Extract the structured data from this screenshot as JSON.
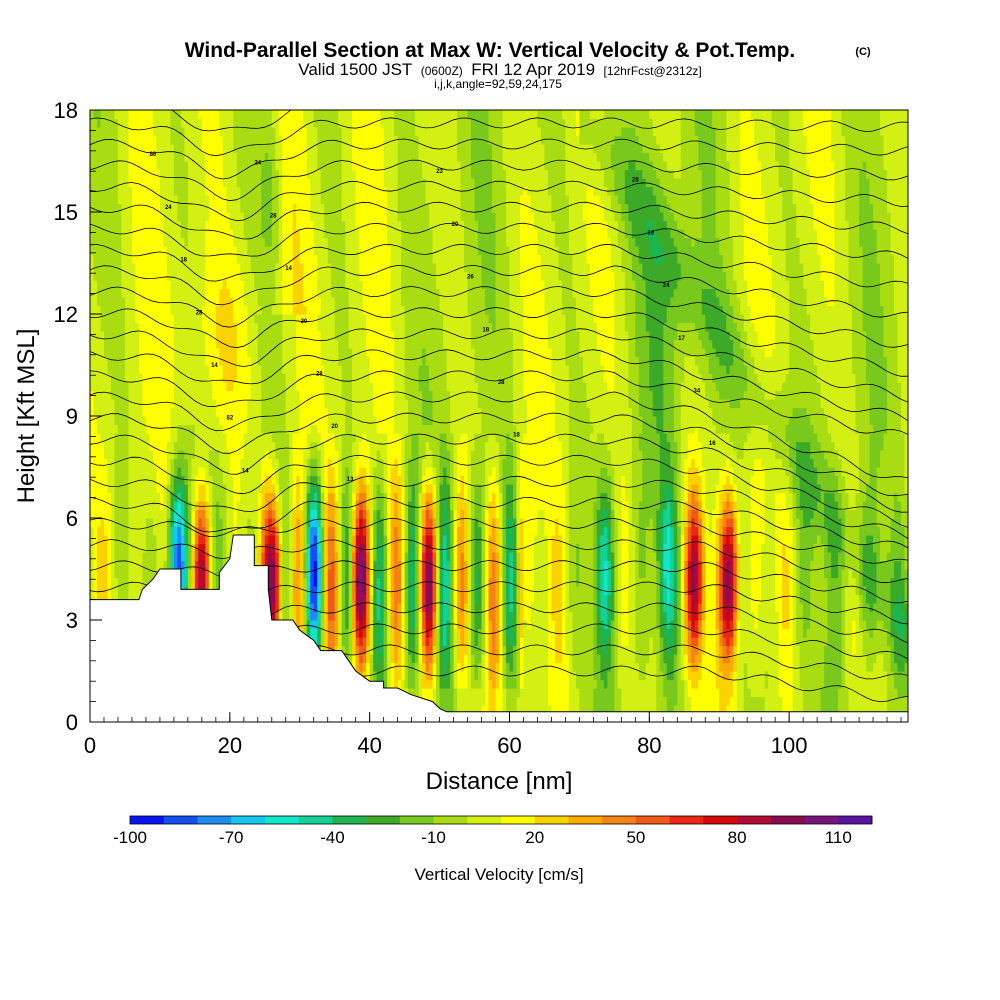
{
  "title": {
    "main": "Wind-Parallel Section at Max W: Vertical Velocity & Pot.Temp.",
    "mark": "(C)",
    "valid_prefix": "Valid 1500 JST",
    "valid_utc": "(0600Z)",
    "valid_date": "FRI 12 Apr 2019",
    "forecast": "[12hrFcst@2312z]",
    "indices": "i,j,k,angle=92,59,24,175"
  },
  "chart_data": {
    "type": "heatmap",
    "xlabel": "Distance [nm]",
    "ylabel": "Height [Kft MSL]",
    "xlim": [
      0,
      117
    ],
    "ylim": [
      0,
      18
    ],
    "x_ticks": [
      0,
      20,
      40,
      60,
      80,
      100
    ],
    "y_ticks": [
      0,
      3,
      6,
      9,
      12,
      15,
      18
    ],
    "colorbar": {
      "label": "Vertical Velocity [cm/s]",
      "min": -100,
      "step": 10,
      "tick_labels": [
        "-100",
        "-70",
        "-40",
        "-10",
        "20",
        "50",
        "80",
        "110"
      ],
      "colors": [
        "#0a14f0",
        "#1450f0",
        "#1e8cf0",
        "#14c8f0",
        "#14e6c8",
        "#14d296",
        "#1eb450",
        "#3caa28",
        "#78c81e",
        "#aadc14",
        "#d2f014",
        "#ffff00",
        "#fad200",
        "#faaa00",
        "#f58214",
        "#f05a14",
        "#eb2814",
        "#d20a0a",
        "#b40a32",
        "#8c0a50",
        "#78147d",
        "#5a14a0"
      ]
    },
    "terrain_kft": [
      [
        0,
        3.6
      ],
      [
        7,
        3.6
      ],
      [
        7.5,
        3.9
      ],
      [
        9,
        4.2
      ],
      [
        10,
        4.5
      ],
      [
        13,
        4.5
      ],
      [
        13,
        3.9
      ],
      [
        18.5,
        3.9
      ],
      [
        18.5,
        4.4
      ],
      [
        20,
        4.8
      ],
      [
        20.5,
        5.5
      ],
      [
        23.5,
        5.5
      ],
      [
        23.5,
        4.6
      ],
      [
        25.5,
        4.6
      ],
      [
        25.5,
        3.9
      ],
      [
        26,
        3.0
      ],
      [
        29,
        3.0
      ],
      [
        30,
        2.7
      ],
      [
        32,
        2.4
      ],
      [
        33,
        2.1
      ],
      [
        36,
        2.1
      ],
      [
        37,
        1.8
      ],
      [
        38,
        1.5
      ],
      [
        40,
        1.2
      ],
      [
        42,
        1.2
      ],
      [
        42,
        1.0
      ],
      [
        44,
        1.0
      ],
      [
        45,
        0.9
      ],
      [
        46,
        0.8
      ],
      [
        49,
        0.6
      ],
      [
        50,
        0.4
      ],
      [
        51,
        0.3
      ],
      [
        117,
        0.3
      ]
    ],
    "updraft_cores": [
      {
        "x": 16.0,
        "w": 90
      },
      {
        "x": 26.5,
        "w": 95
      },
      {
        "x": 38.5,
        "w": 80
      },
      {
        "x": 48.5,
        "w": 70
      },
      {
        "x": 86.5,
        "w": 80
      },
      {
        "x": 91.5,
        "w": 95
      }
    ],
    "downdraft_cores": [
      {
        "x": 12.5,
        "w": -90
      },
      {
        "x": 32.0,
        "w": -70
      },
      {
        "x": 73.5,
        "w": -40
      },
      {
        "x": 82.5,
        "w": -40
      }
    ],
    "contour_labels": [
      "86",
      "24",
      "23",
      "28",
      "24",
      "28",
      "20",
      "18",
      "18",
      "14",
      "26",
      "24",
      "28",
      "20",
      "18",
      "17",
      "14",
      "28",
      "38",
      "34",
      "82",
      "20",
      "18",
      "16",
      "14",
      "13"
    ]
  }
}
